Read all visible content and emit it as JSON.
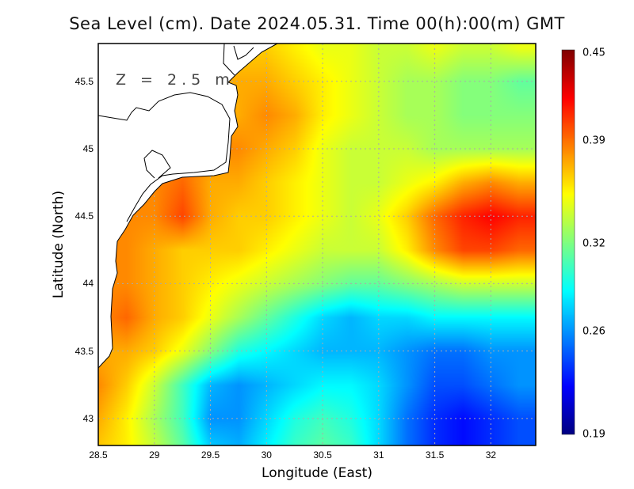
{
  "chart_data": {
    "type": "heatmap",
    "title": "Sea Level (cm). Date 2024.05.31. Time 00(h):00(m) GMT",
    "annotation": "Z = 2.5 m",
    "xlabel": "Longitude (East)",
    "ylabel": "Latitude (North)",
    "xlim": [
      28.5,
      32.4
    ],
    "ylim": [
      42.8,
      45.78
    ],
    "xticks": [
      "28.5",
      "29",
      "29.5",
      "30",
      "30.5",
      "31",
      "31.5",
      "32"
    ],
    "xtick_values": [
      28.5,
      29,
      29.5,
      30,
      30.5,
      31,
      31.5,
      32
    ],
    "yticks": [
      "43",
      "43.5",
      "44",
      "44.5",
      "45",
      "45.5"
    ],
    "ytick_values": [
      43,
      43.5,
      44,
      44.5,
      45,
      45.5
    ],
    "grid": true,
    "colorbar": {
      "min": 0.19,
      "max": 0.45,
      "ticks": [
        "0.19",
        "0.26",
        "0.32",
        "0.39",
        "0.45"
      ],
      "tick_values": [
        0.19,
        0.26,
        0.32,
        0.39,
        0.45
      ],
      "colormap": "jet"
    },
    "lon": [
      28.5,
      28.75,
      29,
      29.25,
      29.5,
      29.75,
      30,
      30.25,
      30.5,
      30.75,
      31,
      31.25,
      31.5,
      31.75,
      32,
      32.25
    ],
    "lat": [
      45.75,
      45.5,
      45.25,
      45.0,
      44.75,
      44.5,
      44.25,
      44.0,
      43.75,
      43.5,
      43.25,
      43.0,
      42.75
    ],
    "values": [
      [
        0.39,
        0.39,
        0.39,
        0.39,
        0.39,
        0.39,
        0.39,
        0.38,
        0.37,
        0.37,
        0.36,
        0.36,
        0.37,
        0.36,
        0.36,
        0.37
      ],
      [
        0.4,
        0.4,
        0.4,
        0.4,
        0.4,
        0.4,
        0.4,
        0.39,
        0.38,
        0.37,
        0.36,
        0.35,
        0.35,
        0.34,
        0.34,
        0.33
      ],
      [
        0.4,
        0.4,
        0.4,
        0.4,
        0.4,
        0.4,
        0.41,
        0.4,
        0.38,
        0.37,
        0.36,
        0.35,
        0.35,
        0.34,
        0.34,
        0.34
      ],
      [
        0.41,
        0.41,
        0.41,
        0.41,
        0.41,
        0.41,
        0.4,
        0.39,
        0.37,
        0.36,
        0.36,
        0.36,
        0.35,
        0.35,
        0.35,
        0.35
      ],
      [
        0.41,
        0.41,
        0.41,
        0.42,
        0.4,
        0.4,
        0.39,
        0.38,
        0.37,
        0.36,
        0.36,
        0.37,
        0.38,
        0.4,
        0.41,
        0.4
      ],
      [
        0.41,
        0.41,
        0.41,
        0.43,
        0.4,
        0.39,
        0.39,
        0.38,
        0.37,
        0.36,
        0.37,
        0.39,
        0.42,
        0.44,
        0.45,
        0.44
      ],
      [
        0.41,
        0.41,
        0.4,
        0.39,
        0.39,
        0.39,
        0.38,
        0.37,
        0.36,
        0.36,
        0.36,
        0.38,
        0.41,
        0.43,
        0.43,
        0.42
      ],
      [
        0.41,
        0.41,
        0.4,
        0.39,
        0.38,
        0.37,
        0.36,
        0.35,
        0.34,
        0.33,
        0.33,
        0.34,
        0.35,
        0.36,
        0.36,
        0.36
      ],
      [
        0.41,
        0.42,
        0.4,
        0.39,
        0.37,
        0.35,
        0.33,
        0.31,
        0.29,
        0.28,
        0.29,
        0.29,
        0.3,
        0.3,
        0.3,
        0.3
      ],
      [
        0.4,
        0.4,
        0.39,
        0.37,
        0.34,
        0.31,
        0.3,
        0.29,
        0.28,
        0.28,
        0.28,
        0.27,
        0.26,
        0.26,
        0.27,
        0.27
      ],
      [
        0.41,
        0.39,
        0.36,
        0.32,
        0.28,
        0.27,
        0.28,
        0.29,
        0.3,
        0.3,
        0.29,
        0.27,
        0.25,
        0.25,
        0.26,
        0.27
      ],
      [
        0.4,
        0.38,
        0.35,
        0.32,
        0.27,
        0.27,
        0.29,
        0.31,
        0.32,
        0.31,
        0.29,
        0.26,
        0.24,
        0.23,
        0.24,
        0.25
      ],
      [
        0.39,
        0.38,
        0.36,
        0.33,
        0.29,
        0.28,
        0.3,
        0.32,
        0.33,
        0.32,
        0.29,
        0.26,
        0.24,
        0.23,
        0.24,
        0.25
      ]
    ]
  }
}
